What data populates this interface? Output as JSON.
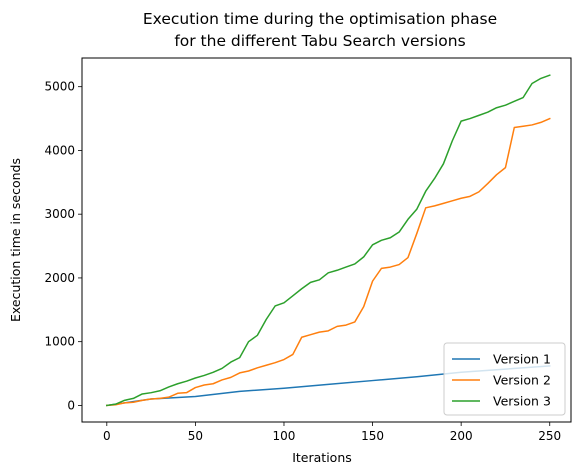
{
  "chart_data": {
    "type": "line",
    "title": [
      "Execution time during the optimisation phase",
      "for the different Tabu Search versions"
    ],
    "xlabel": "Iterations",
    "ylabel": "Execution time in seconds",
    "xlim": [
      -14,
      262
    ],
    "ylim": [
      -260,
      5450
    ],
    "xticks": [
      0,
      50,
      100,
      150,
      200,
      250
    ],
    "yticks": [
      0,
      1000,
      2000,
      3000,
      4000,
      5000
    ],
    "grid": false,
    "legend_position": "lower-right",
    "series": [
      {
        "name": "Version 1",
        "color": "#1f77b4",
        "x": [
          0,
          25,
          50,
          75,
          100,
          125,
          150,
          175,
          200,
          225,
          250
        ],
        "y": [
          0,
          100,
          140,
          220,
          270,
          330,
          390,
          450,
          520,
          570,
          620
        ]
      },
      {
        "name": "Version 2",
        "color": "#ff7f0e",
        "x": [
          0,
          5,
          10,
          15,
          20,
          25,
          30,
          35,
          40,
          45,
          50,
          55,
          60,
          65,
          70,
          75,
          80,
          85,
          90,
          95,
          100,
          105,
          110,
          115,
          120,
          125,
          130,
          135,
          140,
          145,
          150,
          155,
          160,
          165,
          170,
          175,
          180,
          185,
          190,
          195,
          200,
          205,
          210,
          215,
          220,
          225,
          230,
          235,
          240,
          245,
          250
        ],
        "y": [
          0,
          10,
          40,
          50,
          80,
          100,
          110,
          130,
          190,
          200,
          280,
          320,
          340,
          400,
          440,
          510,
          540,
          590,
          630,
          670,
          720,
          800,
          1070,
          1110,
          1150,
          1170,
          1240,
          1260,
          1310,
          1550,
          1950,
          2150,
          2170,
          2210,
          2320,
          2700,
          3100,
          3130,
          3170,
          3210,
          3250,
          3280,
          3350,
          3480,
          3620,
          3730,
          4360,
          4380,
          4400,
          4440,
          4500
        ]
      },
      {
        "name": "Version 3",
        "color": "#2ca02c",
        "x": [
          0,
          5,
          10,
          15,
          20,
          25,
          30,
          35,
          40,
          45,
          50,
          55,
          60,
          65,
          70,
          75,
          80,
          85,
          90,
          95,
          100,
          105,
          110,
          115,
          120,
          125,
          130,
          135,
          140,
          145,
          150,
          155,
          160,
          165,
          170,
          175,
          180,
          185,
          190,
          195,
          200,
          205,
          210,
          215,
          220,
          225,
          230,
          235,
          240,
          245,
          250
        ],
        "y": [
          0,
          20,
          80,
          110,
          180,
          200,
          230,
          290,
          340,
          380,
          430,
          470,
          520,
          580,
          680,
          750,
          1000,
          1100,
          1350,
          1560,
          1610,
          1720,
          1830,
          1930,
          1970,
          2080,
          2120,
          2170,
          2220,
          2330,
          2520,
          2590,
          2630,
          2720,
          2920,
          3080,
          3360,
          3560,
          3790,
          4150,
          4460,
          4500,
          4550,
          4600,
          4670,
          4710,
          4770,
          4830,
          5050,
          5130,
          5180
        ]
      }
    ]
  }
}
